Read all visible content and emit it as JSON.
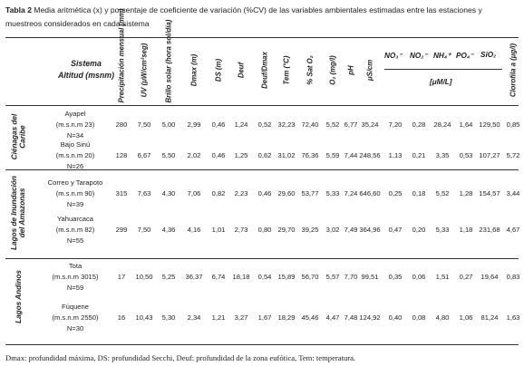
{
  "caption": {
    "label": "Tabla 2",
    "text": " Media aritmética (x) y porcentaje de coeficiente de variación (%CV) de las variables ambientales estimadas entre las estaciones y muestreos considerados en cada sistema"
  },
  "header": {
    "system_title": "Sistema",
    "system_subtitle": "Altitud (msnm)",
    "columns": [
      "Precipitación mensual (mm)",
      "UV (μW/cm²seg)",
      "Brillo solar (hora sol/día)",
      "Dmax (m)",
      "DS (m)",
      "Deuf",
      "Deuf/Dmax",
      "Tem (°C)",
      "% Sat O₂",
      "O₂ (mg/l)",
      "pH",
      "μS/cm"
    ],
    "nutrients": [
      "NO₃⁻",
      "NO₂⁻",
      "NH₄⁺",
      "PO₄⁻",
      "SiO₂"
    ],
    "nutrient_unit": "[μM/L]",
    "last_column": "Clorofila a (μg/l)"
  },
  "groups": [
    {
      "name": "Ciénagas del Caribe",
      "stations": [
        {
          "name": "Ayapel",
          "alt": "(m.s.n.m 23)",
          "n": "N=34",
          "values": [
            "280",
            "7,50",
            "5,00",
            "2,99",
            "0,46",
            "1,24",
            "0,52",
            "32,23",
            "72,40",
            "5,52",
            "6,77",
            "35,24",
            "7,20",
            "0,28",
            "28,24",
            "1,64",
            "129,50",
            "0,85"
          ]
        },
        {
          "name": "Bajo Sinú",
          "alt": "(m.s.n.m 20)",
          "n": "N=26",
          "values": [
            "128",
            "6,67",
            "5,50",
            "2,02",
            "0,46",
            "1,25",
            "0,62",
            "31,02",
            "76,36",
            "5,59",
            "7,44",
            "248,56",
            "1,13",
            "0,21",
            "3,35",
            "0,53",
            "107,27",
            "5,72"
          ]
        }
      ]
    },
    {
      "name": "Lagos de Inundación del Amazonas",
      "stations": [
        {
          "name": "Correo y Tarapoto",
          "alt": "(m.s.n.m 90)",
          "n": "N=39",
          "values": [
            "315",
            "7,63",
            "4,30",
            "7,06",
            "0,82",
            "2,23",
            "0,46",
            "29,60",
            "53,77",
            "5,33",
            "7,24",
            "646,60",
            "0,25",
            "0,18",
            "5,52",
            "1,28",
            "154,57",
            "3,44"
          ]
        },
        {
          "name": "Yahuarcaca",
          "alt": "(m.s.n.m 82)",
          "n": "N=55",
          "values": [
            "299",
            "7,50",
            "4,36",
            "4,16",
            "1,01",
            "2,73",
            "0,80",
            "29,70",
            "39,25",
            "3,02",
            "7,49",
            "364,96",
            "0,47",
            "0,20",
            "5,33",
            "1,18",
            "231,68",
            "4,67"
          ]
        }
      ]
    },
    {
      "name": "Lagos Andinos",
      "stations": [
        {
          "name": "Tota",
          "alt": "(m.s.n.m 3015)",
          "n": "N=59",
          "values": [
            "17",
            "10,50",
            "5,25",
            "36,37",
            "6,74",
            "18,18",
            "0,54",
            "15,89",
            "56,70",
            "5,57",
            "7,70",
            "99,51",
            "0,35",
            "0,06",
            "1,51",
            "0,27",
            "19,64",
            "0,83"
          ]
        },
        {
          "name": "Fúquene",
          "alt": "(m.s.n.m 2550)",
          "n": "N=30",
          "values": [
            "16",
            "10,43",
            "5,30",
            "2,34",
            "1,21",
            "3,27",
            "1,67",
            "18,29",
            "45,46",
            "4,47",
            "7,48",
            "124,92",
            "0,40",
            "0,08",
            "4,80",
            "1,06",
            "81,24",
            "1,63"
          ]
        }
      ]
    }
  ],
  "footnote": "Dmax: profundidad máxima, DS: profundidad Secchi, Deuf: profundidad de la zona eufótica, Tem: temperatura."
}
